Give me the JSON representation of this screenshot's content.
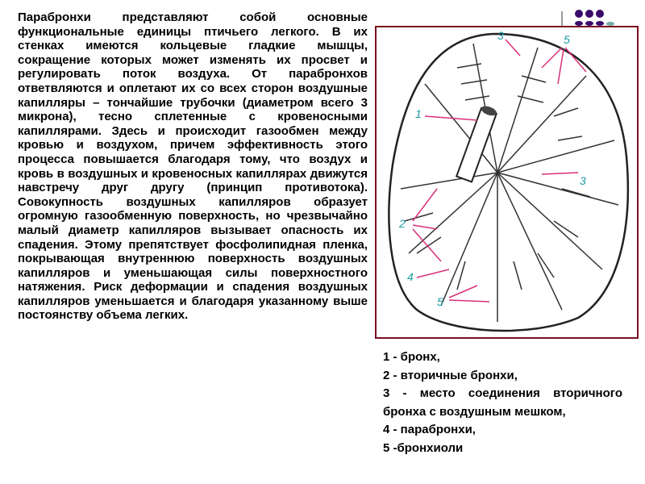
{
  "main_text": "Парабронхи представляют собой основные функциональные единицы птичьего легкого. В их стенках имеются кольцевые гладкие мышцы, сокращение которых может изменять их просвет и регулировать поток воздуха. От парабронхов ответвляются и оплетают их со всех сторон воздушные капилляры – тончайшие трубочки (диаметром всего 3 микрона), тесно сплетенные с кровеносными капиллярами. Здесь и происходит газообмен между кровью и воздухом, причем эффективность этого процесса повышается благодаря тому, что воздух и кровь в воздушных и кровеносных капиллярах движутся навстречу друг другу (принцип противотока). Совокупность воздушных капилляров образует огромную газообменную поверхность, но чрезвычайно малый диаметр капилляров вызывает опасность их спадения. Этому препятствует фосфолипидная пленка, покрывающая внутреннюю поверхность воздушных капилляров и уменьшающая силы поверхностного натяжения. Риск деформации и спадения воздушных капилляров уменьшается и благодаря указанному выше постоянству объема легких.",
  "figure": {
    "labels": [
      "1",
      "2",
      "3",
      "3",
      "4",
      "5",
      "5"
    ],
    "label_color": "#1a9aa0",
    "pointer_color": "#d8307a",
    "border_color": "#7a1020"
  },
  "legend": [
    "1 - бронх,",
    "2 - вторичные бронхи,",
    "3 - место соединения вторичного бронха с воздушным мешком,",
    "4 - парабронхи,",
    "5 -бронхиоли"
  ],
  "decoration": {
    "dot_color": "#3a0a6b"
  }
}
